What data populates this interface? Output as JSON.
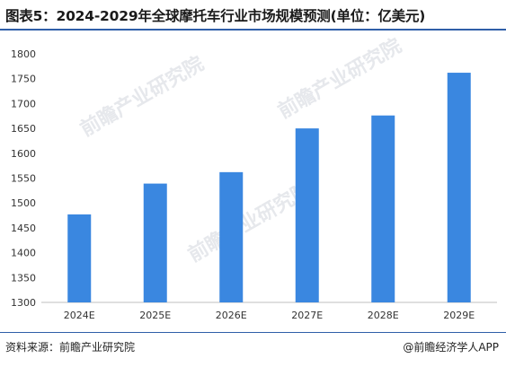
{
  "title": "图表5：2024-2029年全球摩托车行业市场规模预测(单位：亿美元)",
  "source": "资料来源：前瞻产业研究院",
  "brand": "@前瞻经济学人APP",
  "watermark": "前瞻产业研究院",
  "colors": {
    "bar": "#3a87e0",
    "title_line": "#2f5fa8",
    "axis": "#bfbfbf"
  },
  "chart_data": {
    "type": "bar",
    "categories": [
      "2024E",
      "2025E",
      "2026E",
      "2027E",
      "2028E",
      "2029E"
    ],
    "values": [
      1477,
      1539,
      1562,
      1650,
      1676,
      1762
    ],
    "ylim": [
      1300,
      1800
    ],
    "yticks": [
      1300,
      1350,
      1400,
      1450,
      1500,
      1550,
      1600,
      1650,
      1700,
      1750,
      1800
    ],
    "grid": false,
    "legend": "none"
  }
}
